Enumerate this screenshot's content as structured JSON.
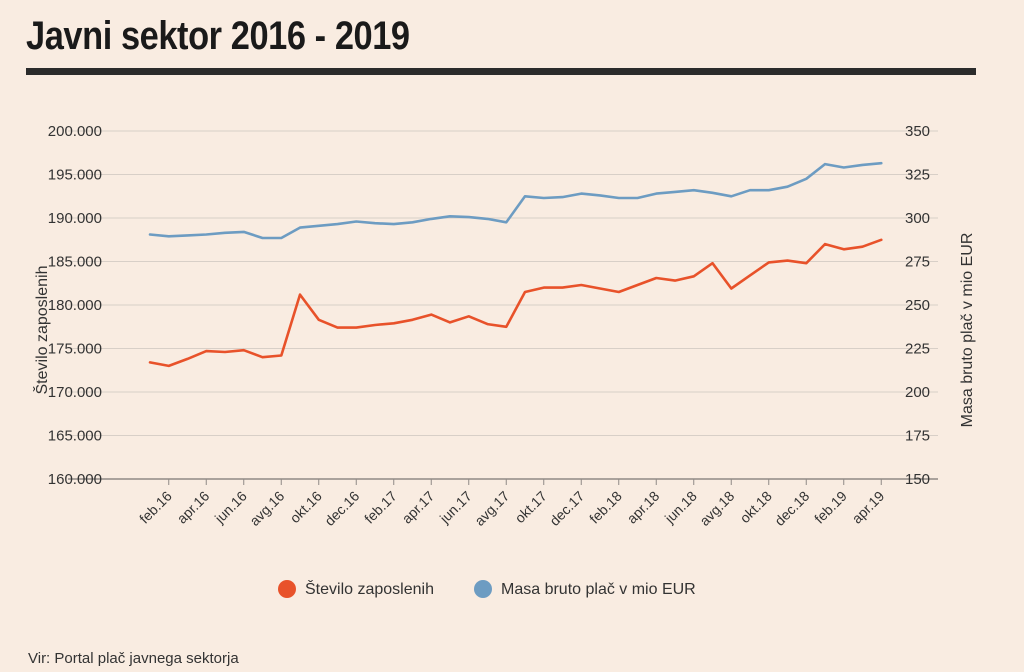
{
  "title": "Javni sektor 2016 - 2019",
  "source": "Vir: Portal plač javnega sektorja",
  "colors": {
    "employees": "#e8522a",
    "wages": "#6d9cc2",
    "grid": "#d8cfc7",
    "axis": "#8f8a86"
  },
  "chart_data": {
    "type": "line",
    "x": [
      "jan.16",
      "feb.16",
      "mar.16",
      "apr.16",
      "maj.16",
      "jun.16",
      "jul.16",
      "avg.16",
      "sep.16",
      "okt.16",
      "nov.16",
      "dec.16",
      "jan.17",
      "feb.17",
      "mar.17",
      "apr.17",
      "maj.17",
      "jun.17",
      "jul.17",
      "avg.17",
      "sep.17",
      "okt.17",
      "nov.17",
      "dec.17",
      "jan.18",
      "feb.18",
      "mar.18",
      "apr.18",
      "maj.18",
      "jun.18",
      "jul.18",
      "avg.18",
      "sep.18",
      "okt.18",
      "nov.18",
      "dec.18",
      "jan.19",
      "feb.19",
      "mar.19",
      "apr.19"
    ],
    "x_tick_labels": [
      "feb.16",
      "apr.16",
      "jun.16",
      "avg.16",
      "okt.16",
      "dec.16",
      "feb.17",
      "apr.17",
      "jun.17",
      "avg.17",
      "okt.17",
      "dec.17",
      "feb.18",
      "apr.18",
      "jun.18",
      "avg.18",
      "okt.18",
      "dec.18",
      "feb.19",
      "apr.19"
    ],
    "series": [
      {
        "name": "Število zaposlenih",
        "axis": "left",
        "values": [
          173400,
          173000,
          173800,
          174700,
          174600,
          174800,
          174000,
          174200,
          181200,
          178300,
          177400,
          177400,
          177700,
          177900,
          178300,
          178900,
          178000,
          178700,
          177800,
          177500,
          181500,
          182000,
          182000,
          182300,
          181900,
          181500,
          182300,
          183100,
          182800,
          183300,
          184800,
          181900,
          183400,
          184900,
          185100,
          184800,
          187000,
          186400,
          186700,
          187500
        ]
      },
      {
        "name": "Masa bruto plač v mio EUR",
        "axis": "right",
        "values": [
          290.5,
          289.5,
          290,
          290.5,
          291.5,
          292,
          288.5,
          288.5,
          294.5,
          295.5,
          296.5,
          298,
          297,
          296.5,
          297.5,
          299.5,
          301,
          300.5,
          299.5,
          297.5,
          312.5,
          311.5,
          312,
          314,
          313,
          311.5,
          311.5,
          314,
          315,
          316,
          314.5,
          312.5,
          316,
          316,
          318,
          322.5,
          331,
          329,
          330.5,
          331.5
        ]
      }
    ],
    "y_left": {
      "label": "Število zaposlenih",
      "min": 160000,
      "max": 200000,
      "tick_labels": [
        "200.000",
        "195.000",
        "190.000",
        "185.000",
        "180.000",
        "175.000",
        "170.000",
        "165.000",
        "160.000"
      ]
    },
    "y_right": {
      "label": "Masa bruto plač v mio EUR",
      "min": 150,
      "max": 350,
      "tick_labels": [
        "350",
        "325",
        "300",
        "275",
        "250",
        "225",
        "200",
        "175",
        "150"
      ]
    },
    "grid": true,
    "legend": {
      "position": "bottom",
      "items": [
        "Število zaposlenih",
        "Masa bruto plač v mio EUR"
      ]
    }
  }
}
